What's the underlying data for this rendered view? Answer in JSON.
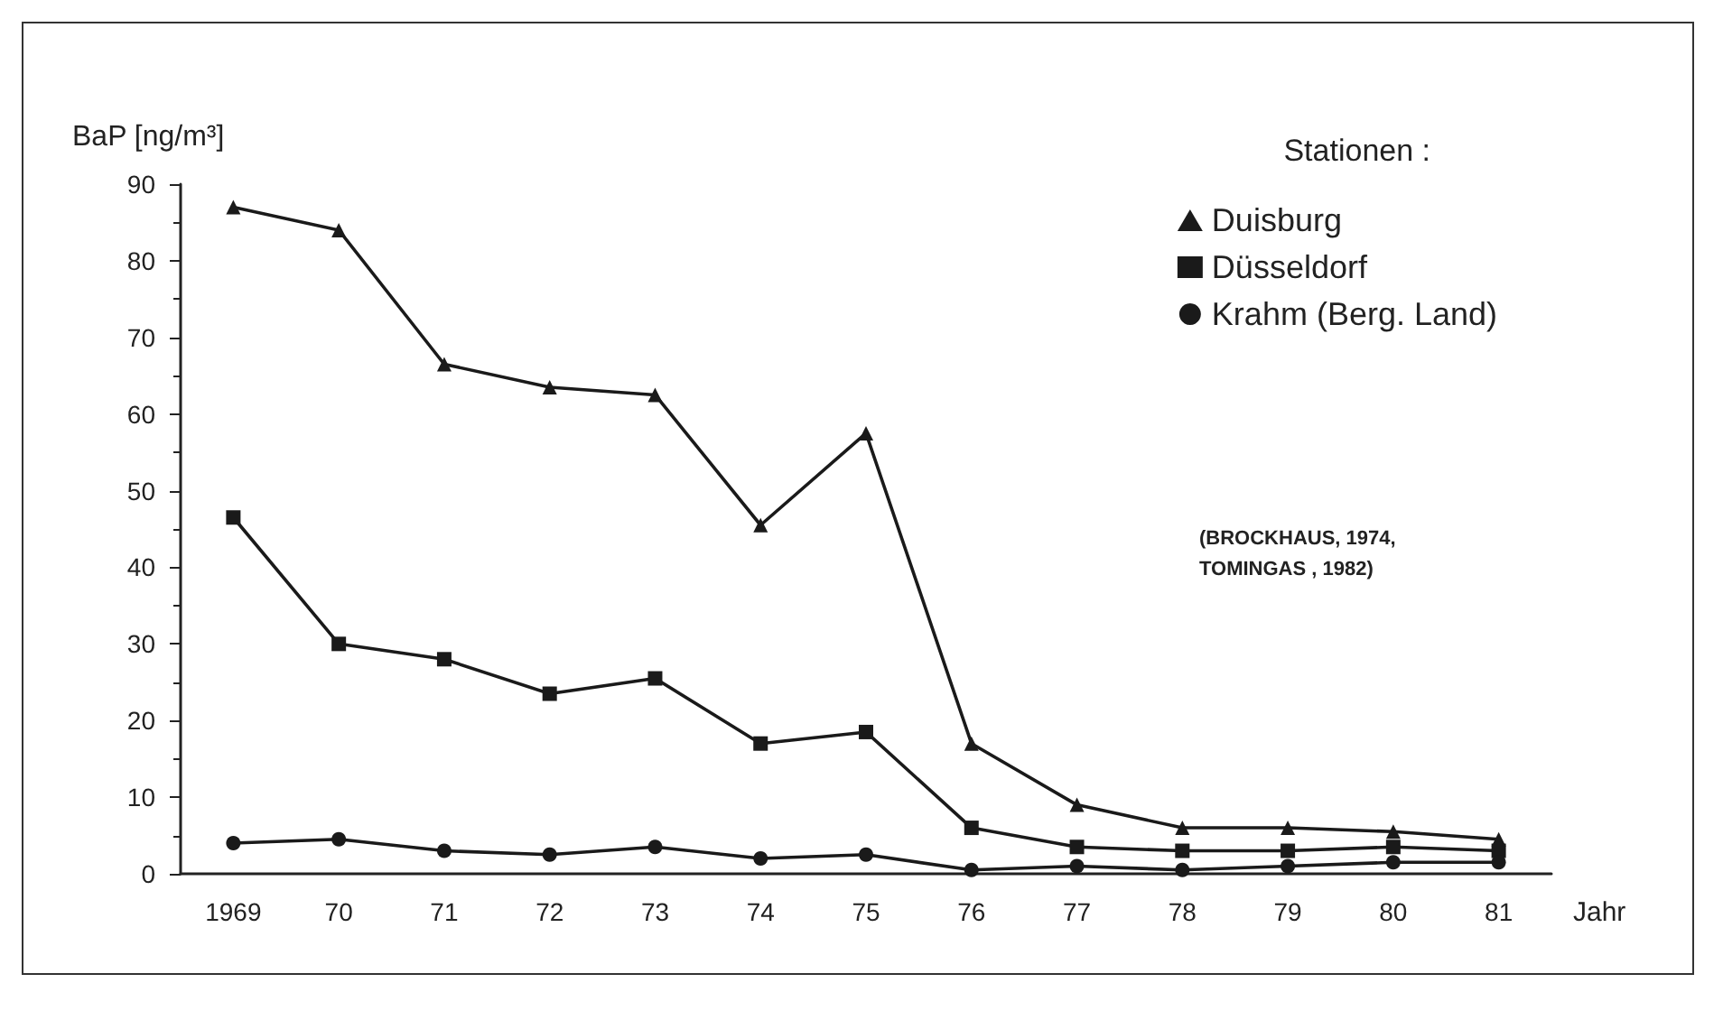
{
  "chart_data": {
    "type": "line",
    "ylabel": "BaP [ng/m³]",
    "xlabel": "Jahr",
    "legend_title": "Stationen :",
    "categories": [
      "1969",
      "70",
      "71",
      "72",
      "73",
      "74",
      "75",
      "76",
      "77",
      "78",
      "79",
      "80",
      "81"
    ],
    "series": [
      {
        "name": "Duisburg",
        "color": "#1a1a1a",
        "marker": "triangle",
        "values": [
          87,
          84,
          66.5,
          63.5,
          62.5,
          45.5,
          57.5,
          17,
          9,
          6,
          6,
          5.5,
          4.5
        ]
      },
      {
        "name": "Düsseldorf",
        "color": "#1a1a1a",
        "marker": "square",
        "values": [
          46.5,
          30,
          28,
          23.5,
          25.5,
          17,
          18.5,
          6,
          3.5,
          3,
          3,
          3.5,
          3
        ]
      },
      {
        "name": "Krahm (Berg. Land)",
        "color": "#1a1a1a",
        "marker": "circle",
        "values": [
          4,
          4.5,
          3,
          2.5,
          3.5,
          2,
          2.5,
          0.5,
          1,
          0.5,
          1,
          1.5,
          1.5
        ]
      }
    ],
    "ylim": [
      0,
      90
    ],
    "yticks": [
      0,
      10,
      20,
      30,
      40,
      50,
      60,
      70,
      80,
      90
    ],
    "grid": false,
    "legend": "top right",
    "line_style": "solid",
    "annotations": [
      "(BROCKHAUS, 1974, TOMINGAS , 1982)"
    ]
  }
}
